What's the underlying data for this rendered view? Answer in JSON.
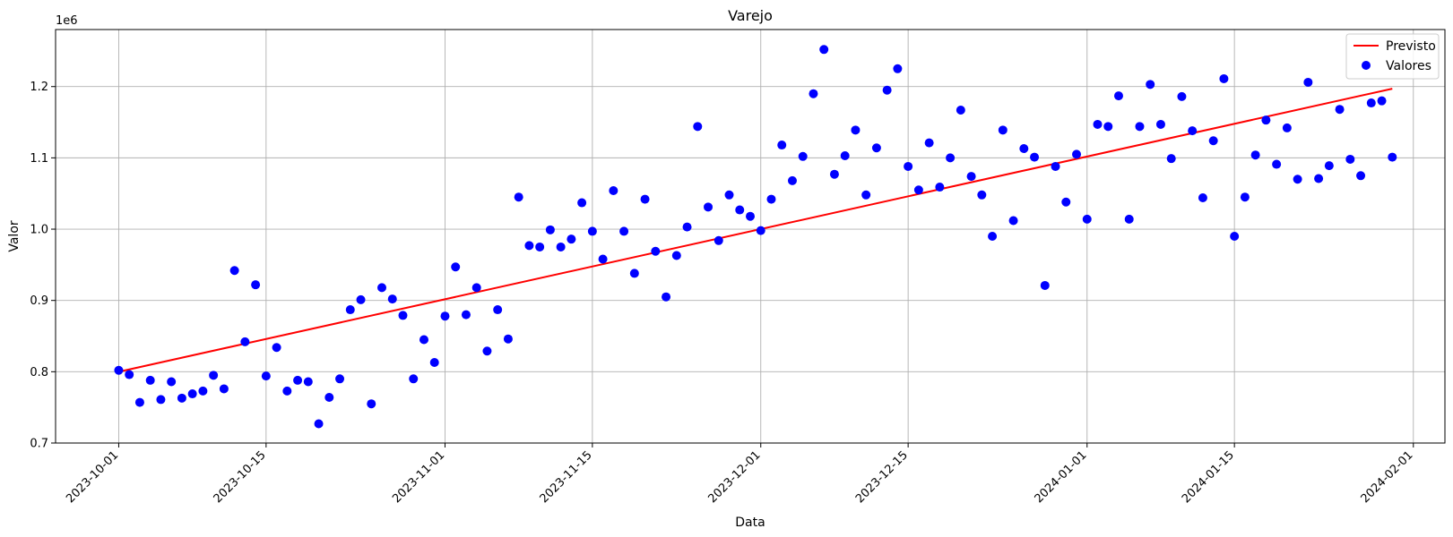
{
  "chart_data": {
    "type": "scatter",
    "title": "Varejo",
    "xlabel": "Data",
    "ylabel": "Valor",
    "y_offset_label": "1e6",
    "grid": true,
    "legend_position": "top-right",
    "x_start_date": "2023-10-01",
    "xlim_days": [
      -6,
      126
    ],
    "ylim": [
      0.7,
      1.28
    ],
    "x_ticks": [
      {
        "label": "2023-10-01",
        "day": 0
      },
      {
        "label": "2023-10-15",
        "day": 14
      },
      {
        "label": "2023-11-01",
        "day": 31
      },
      {
        "label": "2023-11-15",
        "day": 45
      },
      {
        "label": "2023-12-01",
        "day": 61
      },
      {
        "label": "2023-12-15",
        "day": 75
      },
      {
        "label": "2024-01-01",
        "day": 92
      },
      {
        "label": "2024-01-15",
        "day": 106
      },
      {
        "label": "2024-02-01",
        "day": 123
      }
    ],
    "y_ticks": [
      {
        "label": "0.7",
        "value": 0.7
      },
      {
        "label": "0.8",
        "value": 0.8
      },
      {
        "label": "0.9",
        "value": 0.9
      },
      {
        "label": "1.0",
        "value": 1.0
      },
      {
        "label": "1.1",
        "value": 1.1
      },
      {
        "label": "1.2",
        "value": 1.2
      }
    ],
    "series": [
      {
        "name": "Previsto",
        "kind": "line",
        "color": "#ff0000",
        "x_days": [
          0,
          121
        ],
        "y": [
          0.8,
          1.197
        ]
      },
      {
        "name": "Valores",
        "kind": "scatter",
        "color": "#0000ff",
        "x_days": [
          0,
          1,
          2,
          3,
          4,
          5,
          6,
          7,
          8,
          9,
          10,
          11,
          12,
          13,
          14,
          15,
          16,
          17,
          18,
          19,
          20,
          21,
          22,
          23,
          24,
          25,
          26,
          27,
          28,
          29,
          30,
          31,
          32,
          33,
          34,
          35,
          36,
          37,
          38,
          39,
          40,
          41,
          42,
          43,
          44,
          45,
          46,
          47,
          48,
          49,
          50,
          51,
          52,
          53,
          54,
          55,
          56,
          57,
          58,
          59,
          60,
          61,
          62,
          63,
          64,
          65,
          66,
          67,
          68,
          69,
          70,
          71,
          72,
          73,
          74,
          75,
          76,
          77,
          78,
          79,
          80,
          81,
          82,
          83,
          84,
          85,
          86,
          87,
          88,
          89,
          90,
          91,
          92,
          93,
          94,
          95,
          96,
          97,
          98,
          99,
          100,
          101,
          102,
          103,
          104,
          105,
          106,
          107,
          108,
          109,
          110,
          111,
          112,
          113,
          114,
          115,
          116,
          117,
          118,
          119,
          120,
          121
        ],
        "y": [
          0.802,
          0.796,
          0.757,
          0.788,
          0.761,
          0.786,
          0.763,
          0.769,
          0.773,
          0.795,
          0.776,
          0.942,
          0.842,
          0.922,
          0.794,
          0.834,
          0.773,
          0.788,
          0.786,
          0.727,
          0.764,
          0.79,
          0.887,
          0.901,
          0.755,
          0.918,
          0.902,
          0.879,
          0.79,
          0.845,
          0.813,
          0.878,
          0.947,
          0.88,
          0.918,
          0.829,
          0.887,
          0.846,
          1.045,
          0.977,
          0.975,
          0.999,
          0.975,
          0.986,
          1.037,
          0.997,
          0.958,
          1.054,
          0.997,
          0.938,
          1.042,
          0.969,
          0.905,
          0.963,
          1.003,
          1.144,
          1.031,
          0.984,
          1.048,
          1.027,
          1.018,
          0.998,
          1.042,
          1.118,
          1.068,
          1.102,
          1.19,
          1.252,
          1.077,
          1.103,
          1.139,
          1.048,
          1.114,
          1.195,
          1.225,
          1.088,
          1.055,
          1.121,
          1.059,
          1.1,
          1.167,
          1.074,
          1.048,
          0.99,
          1.139,
          1.012,
          1.113,
          1.101,
          0.921,
          1.088,
          1.038,
          1.105,
          1.014,
          1.147,
          1.144,
          1.187,
          1.014,
          1.144,
          1.203,
          1.147,
          1.099,
          1.186,
          1.138,
          1.044,
          1.124,
          1.211,
          0.99,
          1.045,
          1.104,
          1.153,
          1.091,
          1.142,
          1.07,
          1.206,
          1.071,
          1.089,
          1.168,
          1.098,
          1.075,
          1.177,
          1.18,
          1.101
        ]
      }
    ]
  }
}
